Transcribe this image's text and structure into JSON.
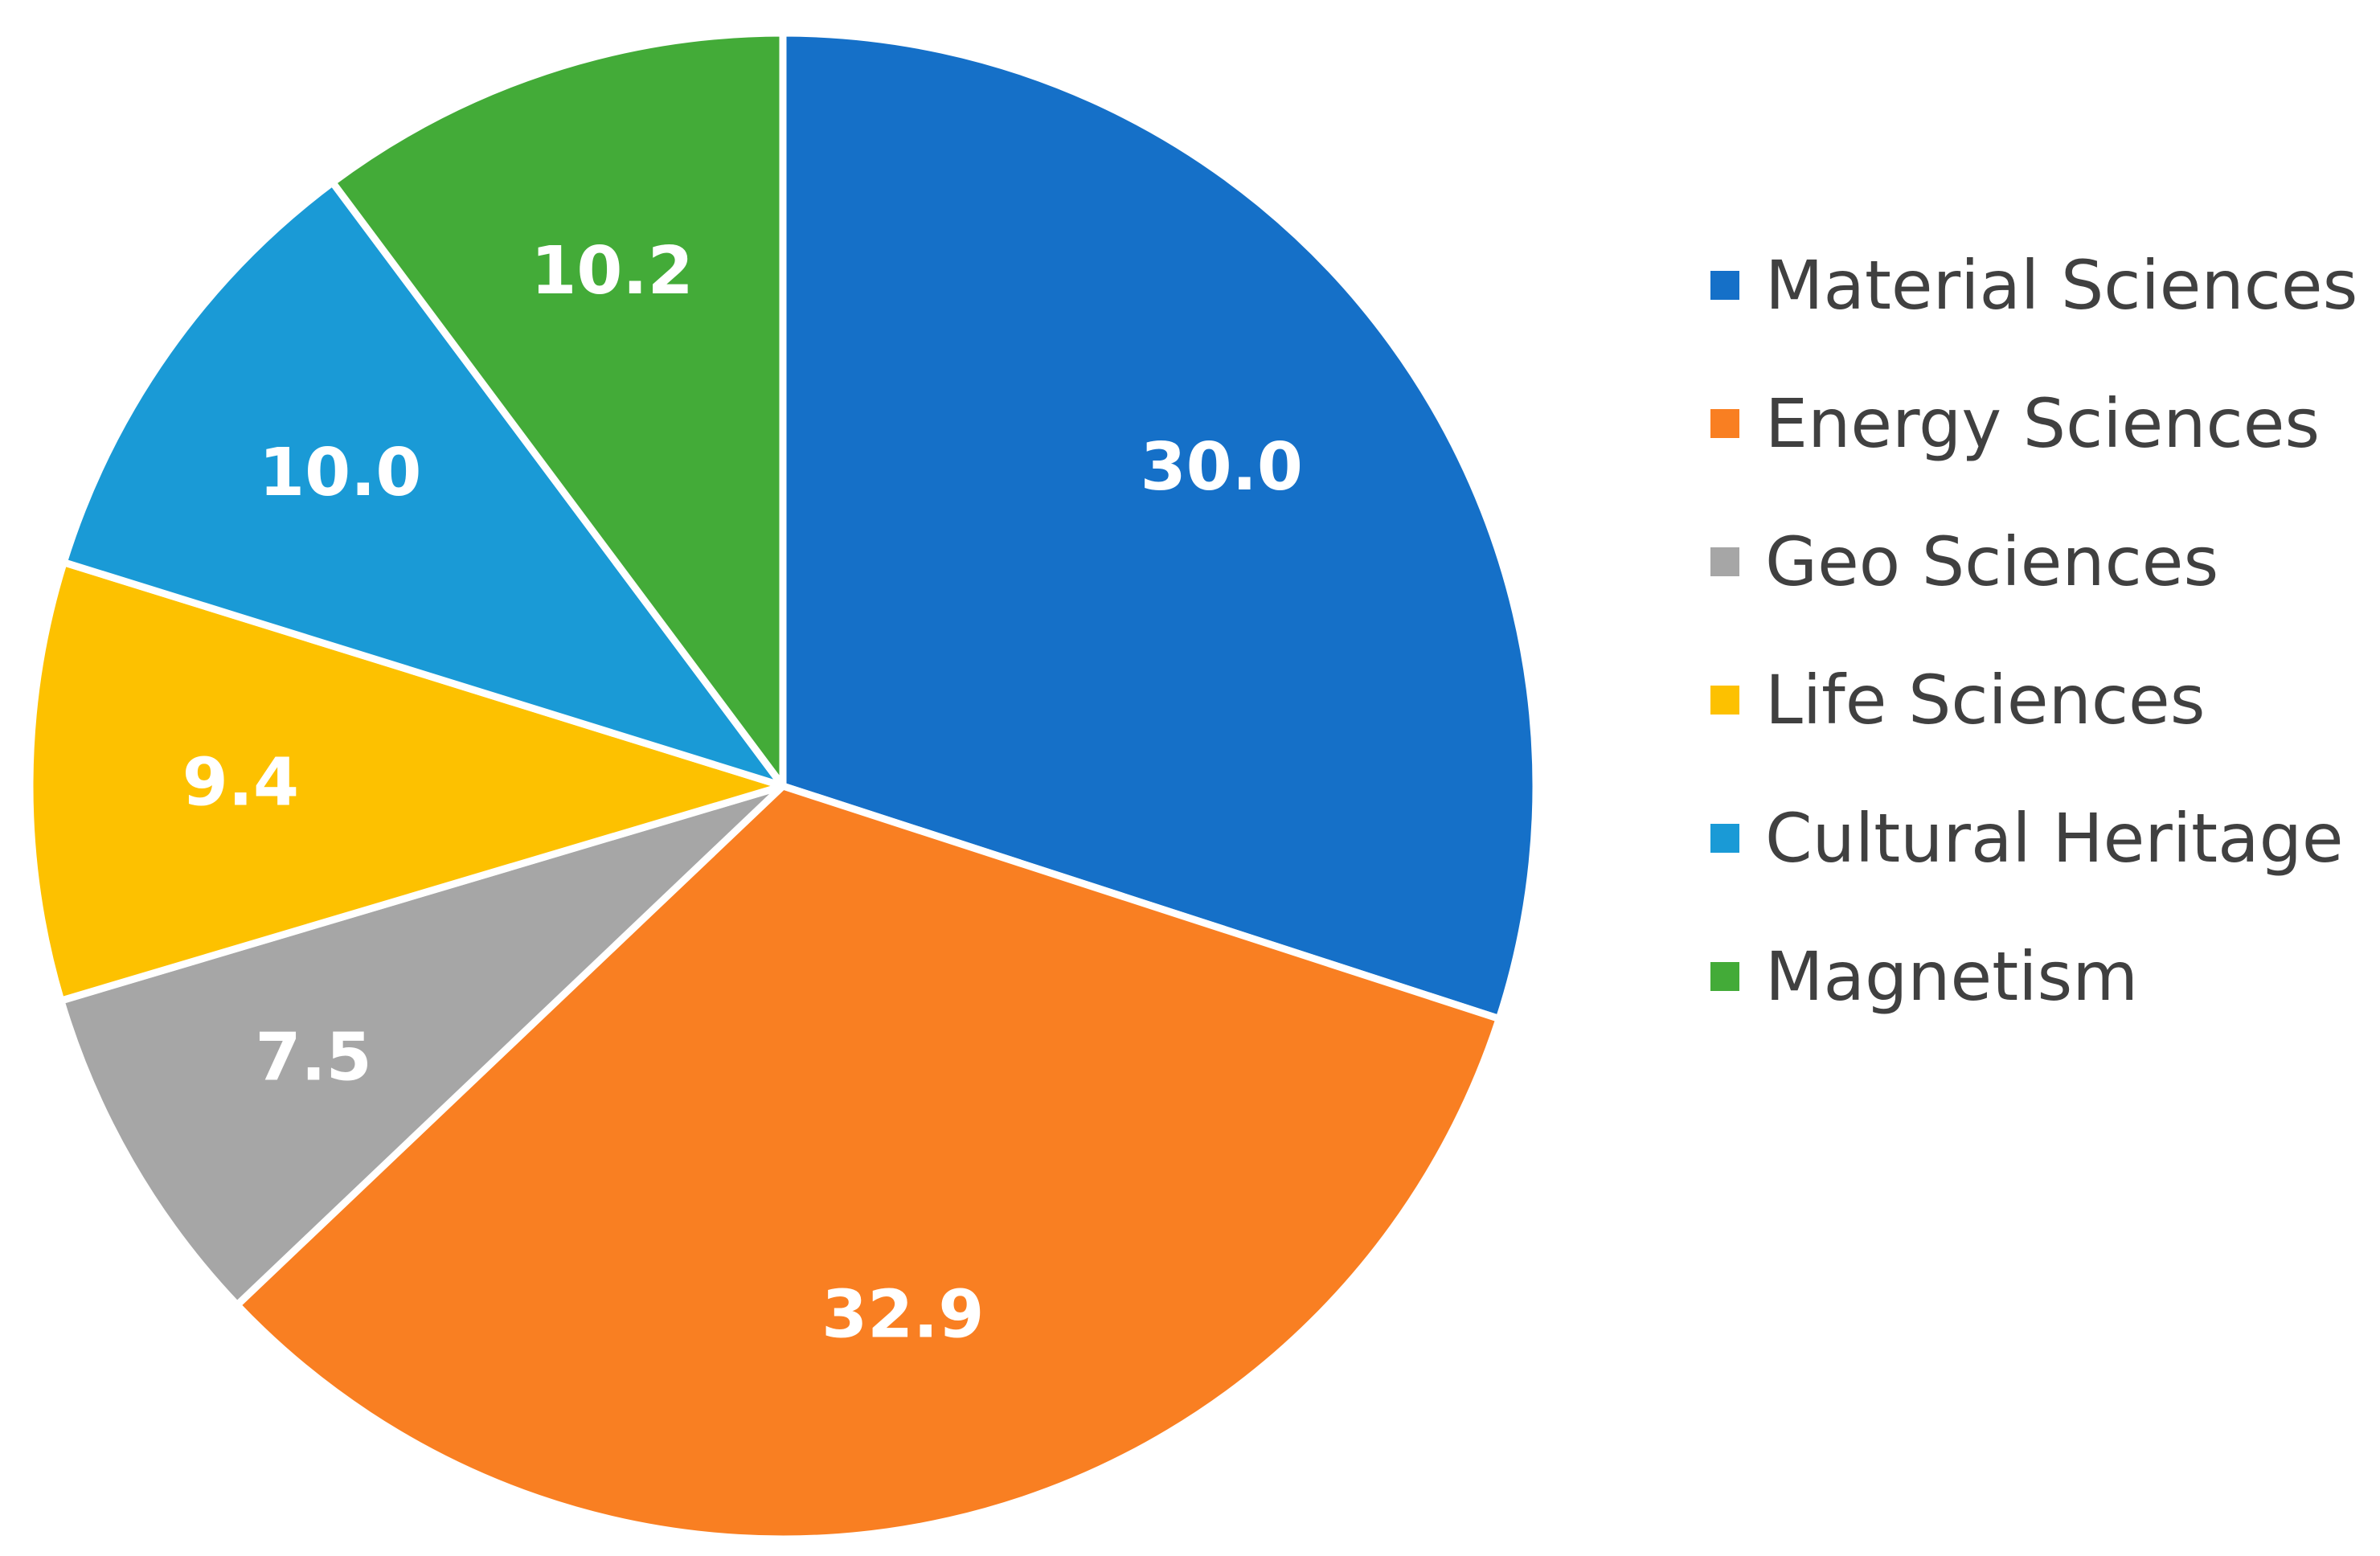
{
  "chart_data": {
    "type": "pie",
    "title": "",
    "categories": [
      "Material Sciences",
      "Energy Sciences",
      "Geo Sciences",
      "Life Sciences",
      "Cultural Heritage",
      "Magnetism"
    ],
    "values": [
      30.0,
      32.9,
      7.5,
      9.4,
      10.0,
      10.2
    ],
    "labels": [
      "30.0",
      "32.9",
      "7.5",
      "9.4",
      "10.0",
      "10.2"
    ],
    "colors": [
      "#1570C8",
      "#F97F22",
      "#A6A6A6",
      "#FDC100",
      "#1A9AD6",
      "#43AB38"
    ],
    "start_angle_deg": 0,
    "direction": "clockwise",
    "legend_position": "right",
    "data_labels": true
  }
}
